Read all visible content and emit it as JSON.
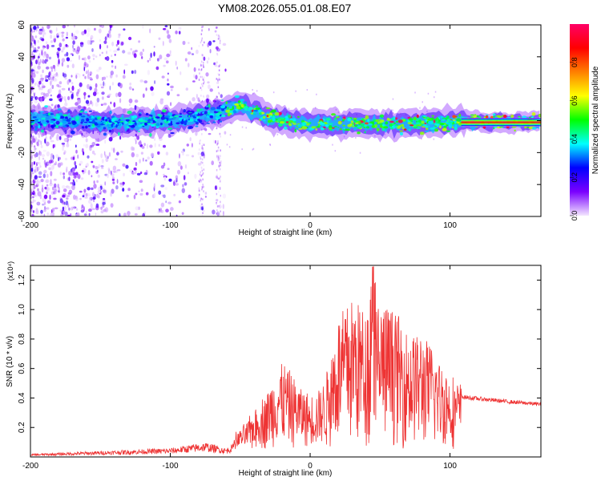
{
  "title": "YM08.2026.055.01.08.E07",
  "chart_data": [
    {
      "type": "heatmap",
      "xlabel": "Height of straight line (km)",
      "ylabel": "Frequency (Hz)",
      "xlim": [
        -200,
        165
      ],
      "ylim": [
        -60,
        60
      ],
      "x_ticks": [
        -200,
        -100,
        0,
        100
      ],
      "y_ticks": [
        -60,
        -40,
        -20,
        0,
        20,
        40,
        60
      ],
      "colorbar": {
        "label": "Normalized spectral amplitude",
        "range": [
          0,
          1
        ],
        "ticks": [
          0.0,
          0.2,
          0.4,
          0.6,
          0.8
        ],
        "colors": [
          "#f3e6ff",
          "#7a00ff",
          "#0000ff",
          "#00ffff",
          "#00ff00",
          "#ffff00",
          "#ff7f00",
          "#ff0000",
          "#ff0066"
        ]
      },
      "ridge_center_hz": {
        "x": [
          -200,
          -165,
          -150,
          -100,
          -70,
          -50,
          -40,
          -30,
          -20,
          -10,
          0,
          50,
          100,
          165
        ],
        "y": [
          0,
          0,
          -2,
          0,
          4,
          10,
          6,
          2,
          0,
          -1,
          -2,
          -2,
          -1,
          -1
        ]
      },
      "grid": false
    },
    {
      "type": "line",
      "xlabel": "Height of straight line (km)",
      "ylabel": "SNR (10 * v/v)",
      "y_multiplier": "(x10⁴)",
      "xlim": [
        -200,
        165
      ],
      "ylim": [
        0,
        1.3
      ],
      "x_ticks": [
        -200,
        -100,
        0,
        100
      ],
      "y_ticks": [
        0.2,
        0.4,
        0.6,
        0.8,
        1.0,
        1.2
      ],
      "series": [
        {
          "color": "#ee3333",
          "envelope_x": [
            -200,
            -150,
            -100,
            -75,
            -60,
            -50,
            -40,
            -30,
            -20,
            -10,
            0,
            10,
            20,
            30,
            40,
            45,
            50,
            60,
            70,
            80,
            90,
            100,
            110,
            120,
            140,
            165
          ],
          "envelope_y": [
            0.02,
            0.04,
            0.06,
            0.1,
            0.06,
            0.12,
            0.25,
            0.4,
            0.6,
            0.45,
            0.35,
            0.45,
            0.9,
            1.05,
            0.95,
            1.29,
            1.0,
            0.95,
            0.8,
            0.78,
            0.65,
            0.5,
            0.42,
            0.41,
            0.39,
            0.37
          ]
        }
      ],
      "grid": false
    }
  ]
}
